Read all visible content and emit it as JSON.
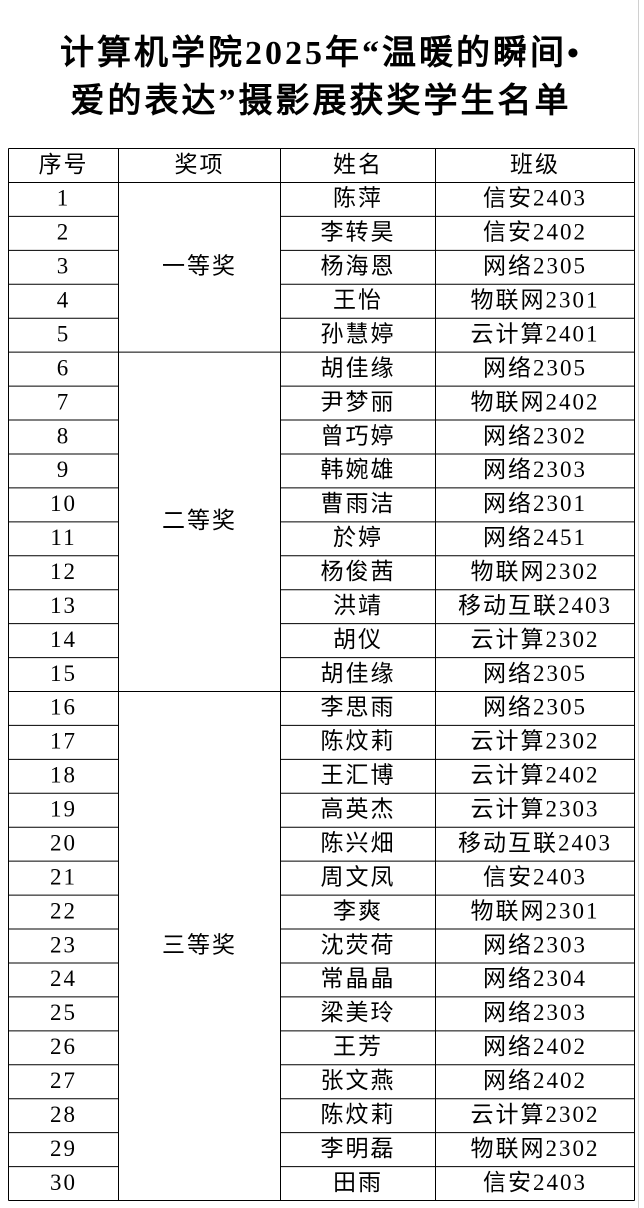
{
  "title": [
    "计算机学院2025年“温暖的瞬间•",
    "爱的表达”摄影展获奖学生名单"
  ],
  "table": {
    "headers": [
      "序号",
      "奖项",
      "姓名",
      "班级"
    ],
    "groups": [
      {
        "award": "一等奖",
        "rows": [
          [
            "1",
            "陈萍",
            "信安2403"
          ],
          [
            "2",
            "李转昊",
            "信安2402"
          ],
          [
            "3",
            "杨海恩",
            "网络2305"
          ],
          [
            "4",
            "王怡",
            "物联网2301"
          ],
          [
            "5",
            "孙慧婷",
            "云计算2401"
          ]
        ]
      },
      {
        "award": "二等奖",
        "rows": [
          [
            "6",
            "胡佳缘",
            "网络2305"
          ],
          [
            "7",
            "尹梦丽",
            "物联网2402"
          ],
          [
            "8",
            "曾巧婷",
            "网络2302"
          ],
          [
            "9",
            "韩婉雄",
            "网络2303"
          ],
          [
            "10",
            "曹雨洁",
            "网络2301"
          ],
          [
            "11",
            "於婷",
            "网络2451"
          ],
          [
            "12",
            "杨俊茜",
            "物联网2302"
          ],
          [
            "13",
            "洪靖",
            "移动互联2403"
          ],
          [
            "14",
            "胡仪",
            "云计算2302"
          ],
          [
            "15",
            "胡佳缘",
            "网络2305"
          ]
        ]
      },
      {
        "award": "三等奖",
        "rows": [
          [
            "16",
            "李思雨",
            "网络2305"
          ],
          [
            "17",
            "陈炆莉",
            "云计算2302"
          ],
          [
            "18",
            "王汇博",
            "云计算2402"
          ],
          [
            "19",
            "高英杰",
            "云计算2303"
          ],
          [
            "20",
            "陈兴畑",
            "移动互联2403"
          ],
          [
            "21",
            "周文凤",
            "信安2403"
          ],
          [
            "22",
            "李爽",
            "物联网2301"
          ],
          [
            "23",
            "沈荧荷",
            "网络2303"
          ],
          [
            "24",
            "常晶晶",
            "网络2304"
          ],
          [
            "25",
            "梁美玲",
            "网络2303"
          ],
          [
            "26",
            "王芳",
            "网络2402"
          ],
          [
            "27",
            "张文燕",
            "网络2402"
          ],
          [
            "28",
            "陈炆莉",
            "云计算2302"
          ],
          [
            "29",
            "李明磊",
            "物联网2302"
          ],
          [
            "30",
            "田雨",
            "信安2403"
          ]
        ]
      }
    ]
  }
}
